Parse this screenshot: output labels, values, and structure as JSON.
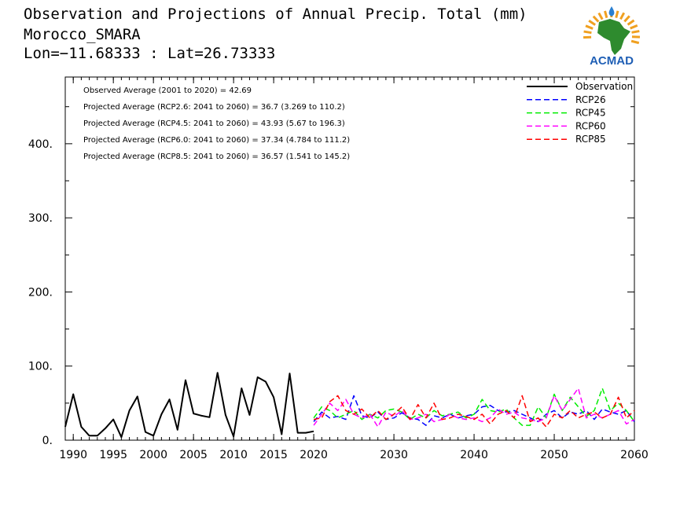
{
  "title": {
    "line1": "Observation and Projections of Annual Precip. Total (mm)",
    "line2": "Morocco_SMARA",
    "line3": "Lon=−11.68333 : Lat=26.73333"
  },
  "logo": {
    "text": "ACMAD",
    "colors": {
      "africa": "#2e8b2e",
      "sun": "#f0a020",
      "drop": "#2a7fd0",
      "text": "#1f5fb5"
    }
  },
  "chart_data": {
    "type": "line",
    "xlim": [
      1989,
      2060
    ],
    "ylim": [
      0,
      490
    ],
    "xticks": [
      1990,
      1995,
      2000,
      2005,
      2010,
      2015,
      2020,
      2030,
      2040,
      2050,
      2060
    ],
    "yticks": [
      0,
      100,
      200,
      300,
      400
    ],
    "ytick_labels": [
      "0.",
      "100.",
      "200.",
      "300.",
      "400."
    ],
    "annotations": [
      "Observed Average (2001 to 2020) = 42.69",
      "Projected Average (RCP2.6: 2041 to 2060) = 36.7 (3.269 to 110.2)",
      "Projected Average (RCP4.5: 2041 to 2060) = 43.93 (5.67 to 196.3)",
      "Projected Average (RCP6.0: 2041 to 2060) = 37.34 (4.784 to 111.2)",
      "Projected Average (RCP8.5: 2041 to 2060) = 36.57 (1.541 to 145.2)"
    ],
    "legend_position": "top-right",
    "series": [
      {
        "name": "Observation",
        "color": "#000000",
        "dashed": false,
        "x": [
          1989,
          1990,
          1991,
          1992,
          1993,
          1994,
          1995,
          1996,
          1997,
          1998,
          1999,
          2000,
          2001,
          2002,
          2003,
          2004,
          2005,
          2006,
          2007,
          2008,
          2009,
          2010,
          2011,
          2012,
          2013,
          2014,
          2015,
          2016,
          2017,
          2018,
          2019,
          2020
        ],
        "y": [
          18,
          62,
          18,
          6,
          6,
          16,
          28,
          4,
          40,
          59,
          11,
          6,
          35,
          55,
          14,
          81,
          36,
          33,
          31,
          91,
          34,
          5,
          70,
          34,
          85,
          79,
          58,
          8,
          90,
          10,
          10,
          12
        ]
      },
      {
        "name": "RCP26",
        "color": "#0000ff",
        "dashed": true,
        "x": [
          2020,
          2021,
          2022,
          2023,
          2024,
          2025,
          2026,
          2027,
          2028,
          2029,
          2030,
          2031,
          2032,
          2033,
          2034,
          2035,
          2036,
          2037,
          2038,
          2039,
          2040,
          2041,
          2042,
          2043,
          2044,
          2045,
          2046,
          2047,
          2048,
          2049,
          2050,
          2051,
          2052,
          2053,
          2054,
          2055,
          2056,
          2057,
          2058,
          2059,
          2060
        ],
        "y": [
          25,
          38,
          30,
          32,
          28,
          60,
          33,
          30,
          38,
          28,
          30,
          37,
          30,
          28,
          20,
          33,
          30,
          35,
          30,
          33,
          35,
          45,
          47,
          40,
          38,
          40,
          35,
          30,
          25,
          35,
          40,
          30,
          38,
          35,
          40,
          28,
          42,
          38,
          35,
          40,
          25
        ]
      },
      {
        "name": "RCP45",
        "color": "#00ee00",
        "dashed": true,
        "x": [
          2020,
          2021,
          2022,
          2023,
          2024,
          2025,
          2026,
          2027,
          2028,
          2029,
          2030,
          2031,
          2032,
          2033,
          2034,
          2035,
          2036,
          2037,
          2038,
          2039,
          2040,
          2041,
          2042,
          2043,
          2044,
          2045,
          2046,
          2047,
          2048,
          2049,
          2050,
          2051,
          2052,
          2053,
          2054,
          2055,
          2056,
          2057,
          2058,
          2059,
          2060
        ],
        "y": [
          30,
          45,
          40,
          30,
          35,
          40,
          28,
          35,
          30,
          40,
          42,
          38,
          28,
          35,
          30,
          40,
          33,
          35,
          38,
          30,
          35,
          55,
          40,
          38,
          42,
          30,
          20,
          20,
          45,
          30,
          62,
          40,
          58,
          45,
          32,
          40,
          70,
          40,
          50,
          40,
          25
        ]
      },
      {
        "name": "RCP60",
        "color": "#ff00ff",
        "dashed": true,
        "x": [
          2020,
          2021,
          2022,
          2023,
          2024,
          2025,
          2026,
          2027,
          2028,
          2029,
          2030,
          2031,
          2032,
          2033,
          2034,
          2035,
          2036,
          2037,
          2038,
          2039,
          2040,
          2041,
          2042,
          2043,
          2044,
          2045,
          2046,
          2047,
          2048,
          2049,
          2050,
          2051,
          2052,
          2053,
          2054,
          2055,
          2056,
          2057,
          2058,
          2059,
          2060
        ],
        "y": [
          20,
          35,
          50,
          40,
          55,
          35,
          30,
          35,
          18,
          38,
          32,
          40,
          28,
          30,
          35,
          25,
          28,
          35,
          30,
          28,
          30,
          25,
          30,
          42,
          35,
          38,
          30,
          28,
          25,
          30,
          60,
          40,
          55,
          70,
          30,
          35,
          30,
          35,
          40,
          22,
          28
        ]
      },
      {
        "name": "RCP85",
        "color": "#ff0000",
        "dashed": true,
        "x": [
          2020,
          2021,
          2022,
          2023,
          2024,
          2025,
          2026,
          2027,
          2028,
          2029,
          2030,
          2031,
          2032,
          2033,
          2034,
          2035,
          2036,
          2037,
          2038,
          2039,
          2040,
          2041,
          2042,
          2043,
          2044,
          2045,
          2046,
          2047,
          2048,
          2049,
          2050,
          2051,
          2052,
          2053,
          2054,
          2055,
          2056,
          2057,
          2058,
          2059,
          2060
        ],
        "y": [
          28,
          30,
          52,
          60,
          40,
          35,
          42,
          30,
          40,
          28,
          35,
          45,
          28,
          48,
          30,
          50,
          28,
          30,
          35,
          32,
          28,
          35,
          22,
          35,
          40,
          30,
          60,
          25,
          30,
          18,
          35,
          30,
          40,
          30,
          35,
          38,
          30,
          35,
          58,
          30,
          40
        ]
      }
    ]
  }
}
